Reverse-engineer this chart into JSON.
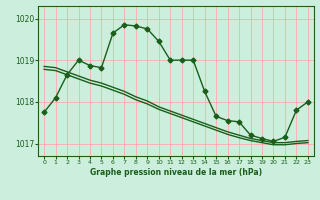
{
  "bg_color": "#cceedd",
  "grid_color": "#ffaaaa",
  "line_color": "#1a5e1a",
  "marker": "D",
  "markersize": 2.5,
  "linewidth": 1.0,
  "xlim": [
    -0.5,
    23.5
  ],
  "ylim": [
    1016.7,
    1020.3
  ],
  "yticks": [
    1017,
    1018,
    1019,
    1020
  ],
  "xticks": [
    0,
    1,
    2,
    3,
    4,
    5,
    6,
    7,
    8,
    9,
    10,
    11,
    12,
    13,
    14,
    15,
    16,
    17,
    18,
    19,
    20,
    21,
    22,
    23
  ],
  "xlabel": "Graphe pression niveau de la mer (hPa)",
  "line1": [
    1017.75,
    1018.1,
    1018.65,
    1019.0,
    1018.87,
    1018.82,
    1019.65,
    1019.85,
    1019.82,
    1019.75,
    1019.45,
    1019.0,
    1019.0,
    1019.0,
    1018.25,
    1017.65,
    1017.55,
    1017.52,
    1017.2,
    1017.12,
    1017.05,
    1017.15,
    1017.8,
    1018.0
  ],
  "line2": [
    1018.85,
    1018.82,
    1018.72,
    1018.62,
    1018.52,
    1018.45,
    1018.35,
    1018.25,
    1018.12,
    1018.02,
    1017.88,
    1017.78,
    1017.68,
    1017.58,
    1017.48,
    1017.38,
    1017.28,
    1017.2,
    1017.12,
    1017.07,
    1017.02,
    1017.02,
    1017.05,
    1017.07
  ],
  "line3": [
    1018.78,
    1018.75,
    1018.65,
    1018.55,
    1018.45,
    1018.38,
    1018.28,
    1018.18,
    1018.05,
    1017.95,
    1017.82,
    1017.72,
    1017.62,
    1017.52,
    1017.42,
    1017.32,
    1017.22,
    1017.14,
    1017.07,
    1017.02,
    1016.97,
    1016.97,
    1017.0,
    1017.02
  ]
}
